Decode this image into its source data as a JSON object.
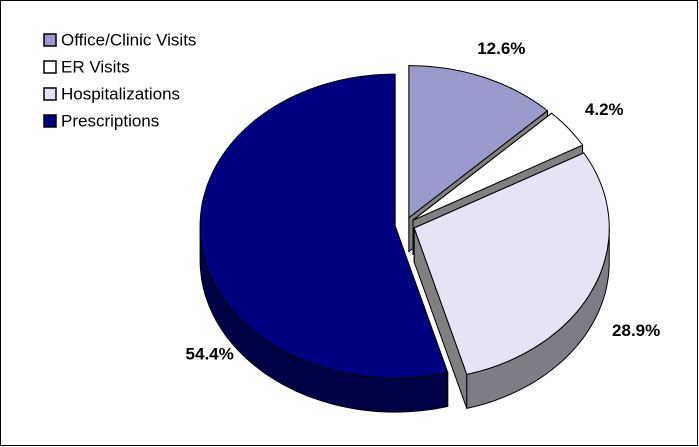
{
  "chart_data": {
    "type": "pie",
    "categories": [
      "Office/Clinic Visits",
      "ER Visits",
      "Hospitalizations",
      "Prescriptions"
    ],
    "values": [
      12.6,
      4.2,
      28.9,
      54.4
    ],
    "value_labels": [
      "12.6%",
      "4.2%",
      "28.9%",
      "54.4%"
    ],
    "colors": [
      "#9a9acc",
      "#ffffff",
      "#e4e4f4",
      "#000080"
    ],
    "legend": "top-left"
  }
}
